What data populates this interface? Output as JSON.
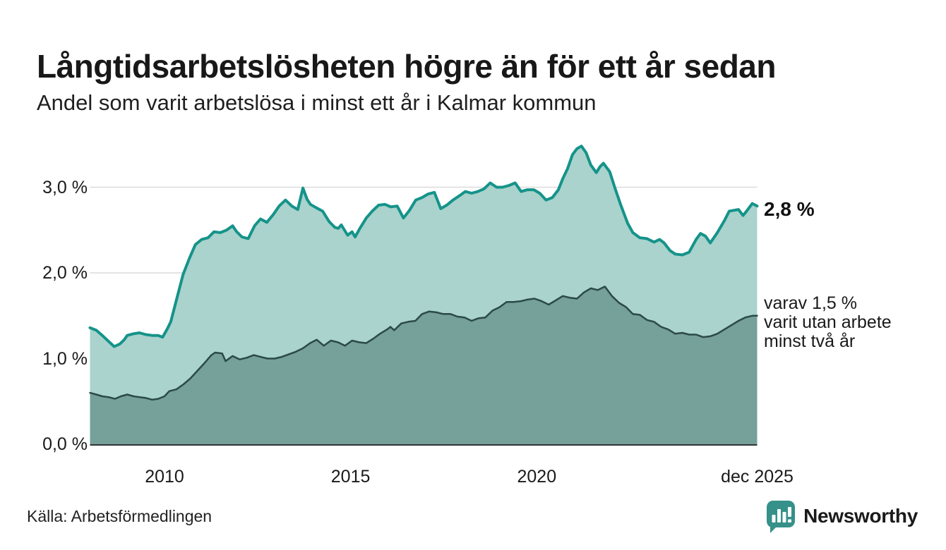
{
  "header": {
    "title": "Långtidsarbetslösheten högre än för ett år sedan",
    "subtitle": "Andel som varit arbetslösa i minst ett år i Kalmar kommun"
  },
  "annotations": {
    "end_value_label": "2,8 %",
    "secondary_lines": [
      "varav 1,5 %",
      "varit utan arbete",
      "minst två år"
    ]
  },
  "source_label": "Källa: Arbetsförmedlingen",
  "branding": {
    "wordmark": "Newsworthy",
    "color": "#35918a",
    "icon": "bar-chart-speech-bubble"
  },
  "chart_data": {
    "type": "area",
    "title": "Långtidsarbetslösheten högre än för ett år sedan",
    "subtitle": "Andel som varit arbetslösa i minst ett år i Kalmar kommun",
    "unit": "%",
    "xlabel": "",
    "ylabel": "",
    "x_range": [
      2008.0,
      2025.92
    ],
    "ylim": [
      0,
      3.6
    ],
    "grid": "horizontal",
    "grid_color": "#dcdcdc",
    "axis_color": "#2f3437",
    "y_ticks": [
      {
        "value": 0,
        "label": "0,0 %"
      },
      {
        "value": 1,
        "label": "1,0 %"
      },
      {
        "value": 2,
        "label": "2,0 %"
      },
      {
        "value": 3,
        "label": "3,0 %"
      }
    ],
    "y_gridlines": [
      1,
      2,
      3
    ],
    "x_ticks": [
      {
        "year": 2010,
        "label": "2010"
      },
      {
        "year": 2015,
        "label": "2015"
      },
      {
        "year": 2020,
        "label": "2020"
      },
      {
        "year": 2025.92,
        "label": "dec 2025"
      }
    ],
    "series": [
      {
        "name": "Andel arbetslösa minst ett år",
        "end_value": "2,8 %",
        "line_color": "#15938a",
        "fill_color": "#a9d3cc",
        "line_width": 4,
        "points": [
          [
            2008.0,
            1.36
          ],
          [
            2008.17,
            1.33
          ],
          [
            2008.33,
            1.27
          ],
          [
            2008.5,
            1.2
          ],
          [
            2008.65,
            1.14
          ],
          [
            2008.8,
            1.17
          ],
          [
            2008.92,
            1.22
          ],
          [
            2009.0,
            1.27
          ],
          [
            2009.17,
            1.29
          ],
          [
            2009.33,
            1.3
          ],
          [
            2009.5,
            1.28
          ],
          [
            2009.67,
            1.27
          ],
          [
            2009.83,
            1.27
          ],
          [
            2009.95,
            1.25
          ],
          [
            2010.08,
            1.35
          ],
          [
            2010.17,
            1.43
          ],
          [
            2010.33,
            1.7
          ],
          [
            2010.5,
            1.98
          ],
          [
            2010.67,
            2.17
          ],
          [
            2010.83,
            2.33
          ],
          [
            2011.0,
            2.39
          ],
          [
            2011.17,
            2.41
          ],
          [
            2011.33,
            2.48
          ],
          [
            2011.5,
            2.47
          ],
          [
            2011.67,
            2.5
          ],
          [
            2011.83,
            2.55
          ],
          [
            2011.94,
            2.48
          ],
          [
            2012.08,
            2.42
          ],
          [
            2012.25,
            2.4
          ],
          [
            2012.42,
            2.55
          ],
          [
            2012.58,
            2.63
          ],
          [
            2012.75,
            2.59
          ],
          [
            2012.92,
            2.68
          ],
          [
            2013.08,
            2.78
          ],
          [
            2013.25,
            2.85
          ],
          [
            2013.42,
            2.78
          ],
          [
            2013.58,
            2.74
          ],
          [
            2013.72,
            2.99
          ],
          [
            2013.83,
            2.86
          ],
          [
            2013.92,
            2.8
          ],
          [
            2014.08,
            2.76
          ],
          [
            2014.25,
            2.72
          ],
          [
            2014.42,
            2.6
          ],
          [
            2014.58,
            2.53
          ],
          [
            2014.67,
            2.52
          ],
          [
            2014.75,
            2.56
          ],
          [
            2014.92,
            2.44
          ],
          [
            2015.04,
            2.48
          ],
          [
            2015.12,
            2.42
          ],
          [
            2015.25,
            2.52
          ],
          [
            2015.42,
            2.64
          ],
          [
            2015.58,
            2.72
          ],
          [
            2015.75,
            2.79
          ],
          [
            2015.92,
            2.8
          ],
          [
            2016.08,
            2.77
          ],
          [
            2016.25,
            2.78
          ],
          [
            2016.42,
            2.64
          ],
          [
            2016.58,
            2.73
          ],
          [
            2016.75,
            2.85
          ],
          [
            2016.92,
            2.88
          ],
          [
            2017.08,
            2.92
          ],
          [
            2017.25,
            2.94
          ],
          [
            2017.42,
            2.75
          ],
          [
            2017.58,
            2.79
          ],
          [
            2017.75,
            2.85
          ],
          [
            2017.92,
            2.9
          ],
          [
            2018.08,
            2.95
          ],
          [
            2018.25,
            2.93
          ],
          [
            2018.42,
            2.95
          ],
          [
            2018.58,
            2.98
          ],
          [
            2018.75,
            3.05
          ],
          [
            2018.92,
            3.0
          ],
          [
            2019.08,
            3.0
          ],
          [
            2019.25,
            3.02
          ],
          [
            2019.42,
            3.05
          ],
          [
            2019.58,
            2.95
          ],
          [
            2019.75,
            2.97
          ],
          [
            2019.92,
            2.97
          ],
          [
            2020.08,
            2.93
          ],
          [
            2020.25,
            2.85
          ],
          [
            2020.42,
            2.88
          ],
          [
            2020.58,
            2.97
          ],
          [
            2020.7,
            3.1
          ],
          [
            2020.83,
            3.22
          ],
          [
            2020.96,
            3.38
          ],
          [
            2021.08,
            3.45
          ],
          [
            2021.2,
            3.48
          ],
          [
            2021.33,
            3.4
          ],
          [
            2021.45,
            3.26
          ],
          [
            2021.6,
            3.17
          ],
          [
            2021.7,
            3.24
          ],
          [
            2021.79,
            3.28
          ],
          [
            2021.96,
            3.18
          ],
          [
            2022.1,
            2.99
          ],
          [
            2022.25,
            2.8
          ],
          [
            2022.44,
            2.58
          ],
          [
            2022.58,
            2.47
          ],
          [
            2022.77,
            2.41
          ],
          [
            2022.96,
            2.4
          ],
          [
            2023.15,
            2.36
          ],
          [
            2023.3,
            2.39
          ],
          [
            2023.42,
            2.35
          ],
          [
            2023.58,
            2.26
          ],
          [
            2023.72,
            2.22
          ],
          [
            2023.91,
            2.21
          ],
          [
            2024.09,
            2.24
          ],
          [
            2024.28,
            2.39
          ],
          [
            2024.4,
            2.46
          ],
          [
            2024.53,
            2.43
          ],
          [
            2024.66,
            2.35
          ],
          [
            2024.85,
            2.47
          ],
          [
            2025.04,
            2.61
          ],
          [
            2025.17,
            2.72
          ],
          [
            2025.29,
            2.73
          ],
          [
            2025.42,
            2.74
          ],
          [
            2025.54,
            2.67
          ],
          [
            2025.67,
            2.74
          ],
          [
            2025.79,
            2.81
          ],
          [
            2025.92,
            2.78
          ]
        ]
      },
      {
        "name": "varav utan arbete minst två år",
        "end_value": "1,5 %",
        "line_color": "#2b4a46",
        "fill_color": "#76a09a",
        "line_width": 2.5,
        "points": [
          [
            2008.0,
            0.6
          ],
          [
            2008.17,
            0.58
          ],
          [
            2008.33,
            0.56
          ],
          [
            2008.5,
            0.55
          ],
          [
            2008.67,
            0.53
          ],
          [
            2008.83,
            0.56
          ],
          [
            2009.0,
            0.58
          ],
          [
            2009.17,
            0.56
          ],
          [
            2009.33,
            0.55
          ],
          [
            2009.5,
            0.54
          ],
          [
            2009.67,
            0.52
          ],
          [
            2009.83,
            0.53
          ],
          [
            2010.0,
            0.56
          ],
          [
            2010.13,
            0.62
          ],
          [
            2010.32,
            0.64
          ],
          [
            2010.51,
            0.7
          ],
          [
            2010.7,
            0.77
          ],
          [
            2010.89,
            0.86
          ],
          [
            2011.08,
            0.95
          ],
          [
            2011.26,
            1.04
          ],
          [
            2011.36,
            1.07
          ],
          [
            2011.55,
            1.06
          ],
          [
            2011.64,
            0.97
          ],
          [
            2011.83,
            1.03
          ],
          [
            2012.02,
            0.99
          ],
          [
            2012.21,
            1.01
          ],
          [
            2012.4,
            1.04
          ],
          [
            2012.58,
            1.02
          ],
          [
            2012.77,
            1.0
          ],
          [
            2012.96,
            1.0
          ],
          [
            2013.15,
            1.02
          ],
          [
            2013.34,
            1.05
          ],
          [
            2013.53,
            1.08
          ],
          [
            2013.72,
            1.12
          ],
          [
            2013.91,
            1.18
          ],
          [
            2014.09,
            1.22
          ],
          [
            2014.28,
            1.15
          ],
          [
            2014.47,
            1.21
          ],
          [
            2014.66,
            1.19
          ],
          [
            2014.85,
            1.15
          ],
          [
            2015.04,
            1.21
          ],
          [
            2015.23,
            1.19
          ],
          [
            2015.42,
            1.18
          ],
          [
            2015.6,
            1.23
          ],
          [
            2015.79,
            1.29
          ],
          [
            2015.98,
            1.34
          ],
          [
            2016.07,
            1.37
          ],
          [
            2016.17,
            1.33
          ],
          [
            2016.36,
            1.41
          ],
          [
            2016.55,
            1.43
          ],
          [
            2016.74,
            1.44
          ],
          [
            2016.92,
            1.52
          ],
          [
            2017.11,
            1.55
          ],
          [
            2017.3,
            1.54
          ],
          [
            2017.49,
            1.52
          ],
          [
            2017.68,
            1.52
          ],
          [
            2017.87,
            1.49
          ],
          [
            2018.06,
            1.48
          ],
          [
            2018.25,
            1.44
          ],
          [
            2018.43,
            1.47
          ],
          [
            2018.62,
            1.48
          ],
          [
            2018.81,
            1.56
          ],
          [
            2019.0,
            1.6
          ],
          [
            2019.19,
            1.66
          ],
          [
            2019.38,
            1.66
          ],
          [
            2019.57,
            1.67
          ],
          [
            2019.76,
            1.69
          ],
          [
            2019.94,
            1.7
          ],
          [
            2020.13,
            1.67
          ],
          [
            2020.32,
            1.63
          ],
          [
            2020.51,
            1.68
          ],
          [
            2020.7,
            1.73
          ],
          [
            2020.89,
            1.71
          ],
          [
            2021.08,
            1.7
          ],
          [
            2021.26,
            1.77
          ],
          [
            2021.45,
            1.82
          ],
          [
            2021.64,
            1.8
          ],
          [
            2021.83,
            1.84
          ],
          [
            2022.02,
            1.73
          ],
          [
            2022.21,
            1.65
          ],
          [
            2022.4,
            1.6
          ],
          [
            2022.58,
            1.52
          ],
          [
            2022.77,
            1.51
          ],
          [
            2022.96,
            1.45
          ],
          [
            2023.15,
            1.43
          ],
          [
            2023.34,
            1.37
          ],
          [
            2023.53,
            1.34
          ],
          [
            2023.72,
            1.29
          ],
          [
            2023.91,
            1.3
          ],
          [
            2024.09,
            1.28
          ],
          [
            2024.28,
            1.28
          ],
          [
            2024.47,
            1.25
          ],
          [
            2024.66,
            1.26
          ],
          [
            2024.85,
            1.29
          ],
          [
            2025.04,
            1.34
          ],
          [
            2025.23,
            1.39
          ],
          [
            2025.42,
            1.44
          ],
          [
            2025.6,
            1.48
          ],
          [
            2025.79,
            1.5
          ],
          [
            2025.92,
            1.5
          ]
        ]
      }
    ],
    "legend": "none (direct labels at line ends)"
  }
}
